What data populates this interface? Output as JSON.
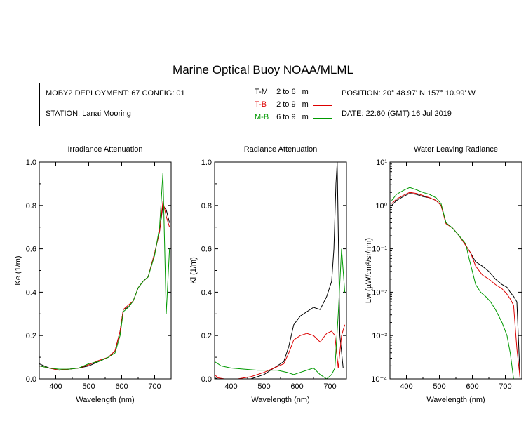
{
  "title": "Marine Optical Buoy NOAA/MLML",
  "info": {
    "deployment": "MOBY2 DEPLOYMENT: 67 CONFIG: 01",
    "station": "STATION: Lanai Mooring",
    "position": "POSITION: 20° 48.97' N   157° 10.99' W",
    "date": "DATE: 22:60 (GMT) 16 Jul 2019"
  },
  "legend": [
    {
      "label": "T-M",
      "range": "2 to 6",
      "unit": "m",
      "color": "#000000"
    },
    {
      "label": "T-B",
      "range": "2 to 9",
      "unit": "m",
      "color": "#dd0000"
    },
    {
      "label": "M-B",
      "range": "6 to 9",
      "unit": "m",
      "color": "#009900"
    }
  ],
  "chart_data": [
    {
      "type": "line",
      "title": "Irradiance Attenuation",
      "xlabel": "Wavelength (nm)",
      "ylabel": "Ke  (1/m)",
      "xlim": [
        350,
        750
      ],
      "ylim": [
        0,
        1
      ],
      "xticks": [
        400,
        500,
        600,
        700
      ],
      "yticks": [
        0.0,
        0.2,
        0.4,
        0.6,
        0.8,
        1.0
      ],
      "ytick_labels": [
        "0.0",
        "0.2",
        "0.4",
        "0.6",
        "0.8",
        "1.0"
      ],
      "series": [
        {
          "name": "T-M",
          "color": "#000000",
          "x": [
            350,
            380,
            410,
            440,
            470,
            500,
            530,
            560,
            580,
            595,
            605,
            620,
            635,
            650,
            665,
            680,
            700,
            715,
            725,
            735,
            745
          ],
          "y": [
            0.07,
            0.05,
            0.04,
            0.045,
            0.05,
            0.06,
            0.08,
            0.1,
            0.13,
            0.22,
            0.32,
            0.33,
            0.36,
            0.42,
            0.45,
            0.47,
            0.58,
            0.68,
            0.8,
            0.78,
            0.72
          ]
        },
        {
          "name": "T-B",
          "color": "#dd0000",
          "x": [
            350,
            380,
            410,
            440,
            470,
            500,
            530,
            560,
            580,
            595,
            605,
            620,
            635,
            650,
            665,
            680,
            700,
            715,
            725,
            735,
            745
          ],
          "y": [
            0.06,
            0.05,
            0.04,
            0.045,
            0.05,
            0.065,
            0.085,
            0.1,
            0.13,
            0.22,
            0.32,
            0.34,
            0.36,
            0.42,
            0.45,
            0.47,
            0.58,
            0.68,
            0.82,
            0.75,
            0.7
          ]
        },
        {
          "name": "M-B",
          "color": "#009900",
          "x": [
            350,
            380,
            410,
            440,
            470,
            500,
            530,
            560,
            580,
            595,
            605,
            620,
            635,
            650,
            665,
            680,
            700,
            715,
            725,
            735,
            745
          ],
          "y": [
            0.06,
            0.05,
            0.045,
            0.045,
            0.05,
            0.07,
            0.08,
            0.1,
            0.12,
            0.2,
            0.31,
            0.33,
            0.36,
            0.42,
            0.45,
            0.47,
            0.57,
            0.7,
            0.95,
            0.3,
            0.6
          ]
        }
      ]
    },
    {
      "type": "line",
      "title": "Radiance Attenuation",
      "xlabel": "Wavelength (nm)",
      "ylabel": "Kl  (1/m)",
      "xlim": [
        350,
        750
      ],
      "ylim": [
        0,
        1
      ],
      "xticks": [
        400,
        500,
        600,
        700
      ],
      "yticks": [
        0.0,
        0.2,
        0.4,
        0.6,
        0.8,
        1.0
      ],
      "ytick_labels": [
        "0.0",
        "0.2",
        "0.4",
        "0.6",
        "0.8",
        "1.0"
      ],
      "series": [
        {
          "name": "T-M",
          "color": "#000000",
          "x": [
            350,
            360,
            380,
            420,
            460,
            500,
            530,
            560,
            575,
            590,
            610,
            630,
            650,
            670,
            690,
            705,
            712,
            718,
            722,
            730,
            740
          ],
          "y": [
            0.005,
            0.0,
            0.0,
            0.0,
            0.0,
            0.02,
            0.05,
            0.08,
            0.15,
            0.25,
            0.29,
            0.31,
            0.33,
            0.32,
            0.38,
            0.45,
            0.6,
            0.9,
            1.0,
            0.2,
            0.05
          ]
        },
        {
          "name": "T-B",
          "color": "#dd0000",
          "x": [
            350,
            360,
            380,
            420,
            460,
            500,
            530,
            560,
            575,
            590,
            610,
            630,
            650,
            670,
            690,
            705,
            715,
            725,
            735,
            745
          ],
          "y": [
            0.02,
            0.005,
            0.0,
            0.0,
            0.01,
            0.03,
            0.05,
            0.07,
            0.12,
            0.18,
            0.2,
            0.21,
            0.2,
            0.17,
            0.21,
            0.22,
            0.2,
            0.05,
            0.2,
            0.25
          ]
        },
        {
          "name": "M-B",
          "color": "#009900",
          "x": [
            350,
            370,
            400,
            440,
            480,
            510,
            540,
            570,
            590,
            610,
            630,
            650,
            670,
            690,
            705,
            715,
            725,
            735,
            745
          ],
          "y": [
            0.08,
            0.06,
            0.05,
            0.045,
            0.04,
            0.04,
            0.04,
            0.03,
            0.02,
            0.03,
            0.04,
            0.05,
            0.02,
            0.0,
            0.02,
            0.05,
            0.3,
            0.6,
            0.4
          ]
        }
      ]
    },
    {
      "type": "line",
      "title": "Water Leaving Radiance",
      "xlabel": "Wavelength (nm)",
      "ylabel": "Lw  (µW/cm²/sr/nm)",
      "xlim": [
        350,
        750
      ],
      "ylim": [
        0.0001,
        10
      ],
      "yscale": "log",
      "xticks": [
        400,
        500,
        600,
        700
      ],
      "yticks": [
        0.0001,
        0.001,
        0.01,
        0.1,
        1,
        10
      ],
      "ytick_labels": [
        "10⁻⁴",
        "10⁻³",
        "10⁻²",
        "10⁻¹",
        "10⁰",
        "10¹"
      ],
      "series": [
        {
          "name": "T-M",
          "color": "#000000",
          "x": [
            355,
            370,
            390,
            410,
            430,
            450,
            470,
            490,
            505,
            520,
            540,
            560,
            580,
            595,
            610,
            630,
            650,
            670,
            690,
            705,
            715,
            725,
            735,
            745
          ],
          "y": [
            1.0,
            1.3,
            1.6,
            1.9,
            1.8,
            1.6,
            1.5,
            1.3,
            1.0,
            0.4,
            0.3,
            0.2,
            0.12,
            0.08,
            0.05,
            0.04,
            0.03,
            0.02,
            0.015,
            0.013,
            0.01,
            0.008,
            0.006,
            0.0001
          ]
        },
        {
          "name": "T-B",
          "color": "#dd0000",
          "x": [
            355,
            370,
            390,
            410,
            430,
            450,
            470,
            490,
            505,
            520,
            540,
            560,
            580,
            595,
            610,
            630,
            650,
            670,
            690,
            705,
            715,
            725,
            735,
            745
          ],
          "y": [
            1.1,
            1.4,
            1.7,
            2.0,
            1.9,
            1.7,
            1.5,
            1.3,
            1.0,
            0.38,
            0.3,
            0.2,
            0.12,
            0.08,
            0.04,
            0.025,
            0.02,
            0.015,
            0.012,
            0.009,
            0.007,
            0.005,
            0.0005,
            0.0001
          ]
        },
        {
          "name": "M-B",
          "color": "#009900",
          "x": [
            355,
            370,
            390,
            410,
            430,
            450,
            470,
            490,
            505,
            520,
            540,
            560,
            580,
            590,
            600,
            610,
            625,
            640,
            655,
            670,
            690,
            705,
            715,
            725,
            735
          ],
          "y": [
            1.3,
            1.8,
            2.2,
            2.6,
            2.3,
            2.0,
            1.8,
            1.5,
            1.1,
            0.4,
            0.3,
            0.2,
            0.13,
            0.06,
            0.03,
            0.015,
            0.01,
            0.008,
            0.006,
            0.004,
            0.002,
            0.001,
            0.0004,
            0.0001,
            0.0001
          ]
        }
      ]
    }
  ]
}
